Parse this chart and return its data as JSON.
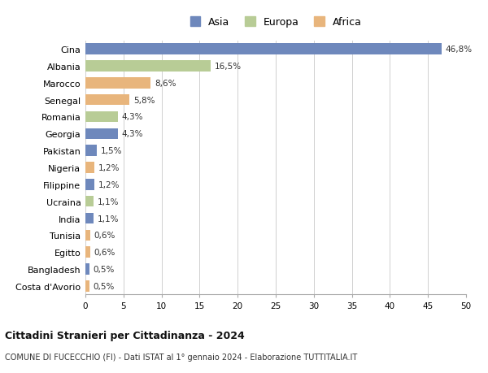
{
  "countries": [
    "Cina",
    "Albania",
    "Marocco",
    "Senegal",
    "Romania",
    "Georgia",
    "Pakistan",
    "Nigeria",
    "Filippine",
    "Ucraina",
    "India",
    "Tunisia",
    "Egitto",
    "Bangladesh",
    "Costa d'Avorio"
  ],
  "values": [
    46.8,
    16.5,
    8.6,
    5.8,
    4.3,
    4.3,
    1.5,
    1.2,
    1.2,
    1.1,
    1.1,
    0.6,
    0.6,
    0.5,
    0.5
  ],
  "labels": [
    "46,8%",
    "16,5%",
    "8,6%",
    "5,8%",
    "4,3%",
    "4,3%",
    "1,5%",
    "1,2%",
    "1,2%",
    "1,1%",
    "1,1%",
    "0,6%",
    "0,6%",
    "0,5%",
    "0,5%"
  ],
  "continents": [
    "Asia",
    "Europa",
    "Africa",
    "Africa",
    "Europa",
    "Asia",
    "Asia",
    "Africa",
    "Asia",
    "Europa",
    "Asia",
    "Africa",
    "Africa",
    "Asia",
    "Africa"
  ],
  "colors": {
    "Asia": "#6e88bc",
    "Europa": "#b8cc96",
    "Africa": "#e8b57c"
  },
  "legend_colors": {
    "Asia": "#6e88bc",
    "Europa": "#b8cc96",
    "Africa": "#e8b57c"
  },
  "title1": "Cittadini Stranieri per Cittadinanza - 2024",
  "title2": "COMUNE DI FUCECCHIO (FI) - Dati ISTAT al 1° gennaio 2024 - Elaborazione TUTTITALIA.IT",
  "xlim": [
    0,
    50
  ],
  "xticks": [
    0,
    5,
    10,
    15,
    20,
    25,
    30,
    35,
    40,
    45,
    50
  ],
  "background_color": "#ffffff",
  "grid_color": "#d0d0d0",
  "bar_height": 0.65
}
